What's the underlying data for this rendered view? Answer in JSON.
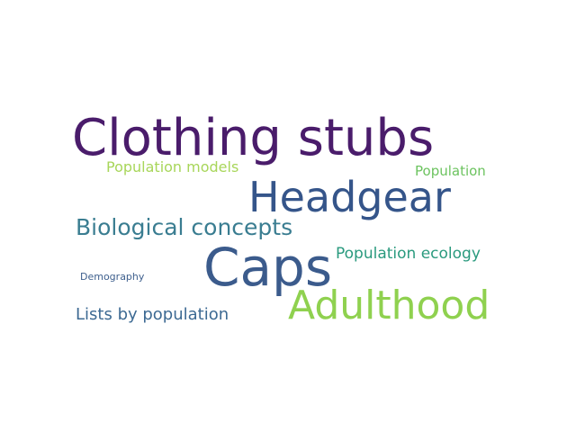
{
  "words": [
    {
      "text": "Clothing stubs",
      "color": "#4a1c6b"
    },
    {
      "text": "Headgear",
      "color": "#35558a"
    },
    {
      "text": "Caps",
      "color": "#3b5b8c"
    },
    {
      "text": "Adulthood",
      "color": "#8fd14f"
    },
    {
      "text": "Biological concepts",
      "color": "#3a7d91"
    },
    {
      "text": "Population models",
      "color": "#a8d65a"
    },
    {
      "text": "Population",
      "color": "#6cc35f"
    },
    {
      "text": "Population ecology",
      "color": "#2a9a7e"
    },
    {
      "text": "Lists by population",
      "color": "#3d6a93"
    },
    {
      "text": "Demography",
      "color": "#3e5f8d"
    }
  ]
}
